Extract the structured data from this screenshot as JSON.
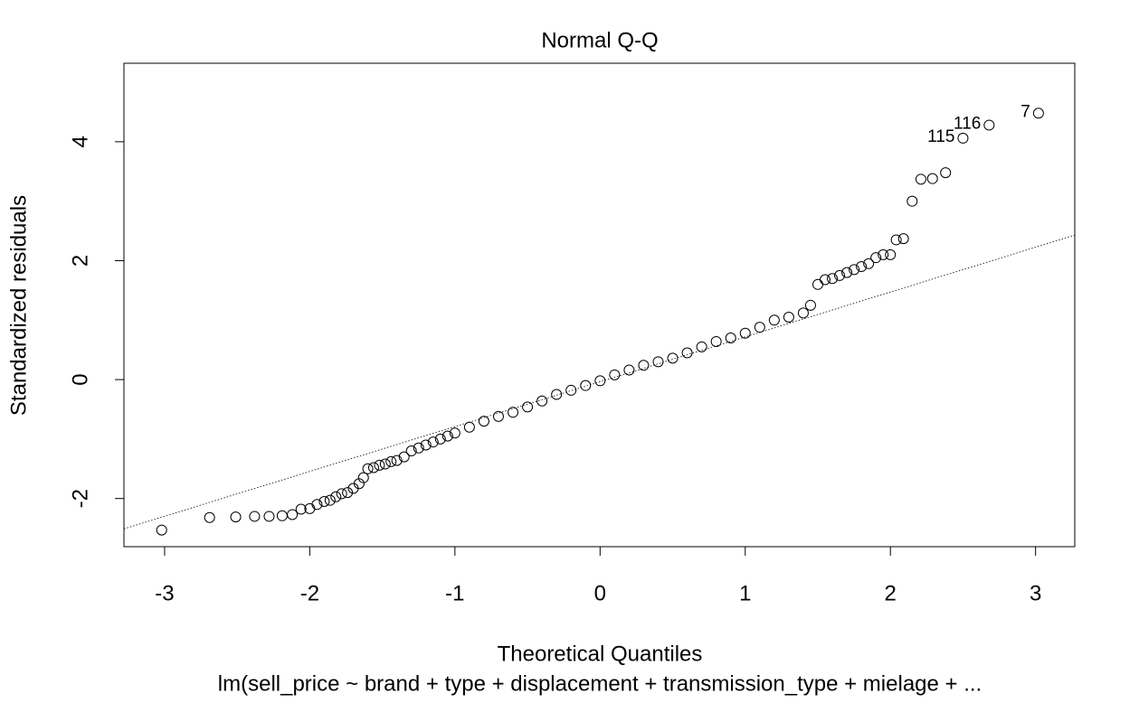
{
  "chart_data": {
    "type": "scatter",
    "title": "Normal Q-Q",
    "x_label": "Theoretical Quantiles",
    "y_label": "Standardized residuals",
    "subtitle": "lm(sell_price ~ brand + type + displacement + transmission_type + mielage + ...",
    "x": [
      -3.02,
      -2.69,
      -2.51,
      -2.38,
      -2.28,
      -2.19,
      -2.12,
      -2.06,
      -2.0,
      -1.95,
      -1.9,
      -1.86,
      -1.82,
      -1.78,
      -1.74,
      -1.7,
      -1.66,
      -1.63,
      -1.6,
      -1.56,
      -1.52,
      -1.48,
      -1.44,
      -1.4,
      -1.35,
      -1.3,
      -1.25,
      -1.2,
      -1.15,
      -1.1,
      -1.05,
      -1.0,
      -0.9,
      -0.8,
      -0.7,
      -0.6,
      -0.5,
      -0.4,
      -0.3,
      -0.2,
      -0.1,
      0,
      0.1,
      0.2,
      0.3,
      0.4,
      0.5,
      0.6,
      0.7,
      0.8,
      0.9,
      1.0,
      1.1,
      1.2,
      1.3,
      1.4,
      1.45,
      1.5,
      1.55,
      1.6,
      1.65,
      1.7,
      1.75,
      1.8,
      1.85,
      1.9,
      1.95,
      2.0,
      2.04,
      2.09,
      2.15,
      2.21,
      2.29,
      2.38,
      2.5,
      2.68,
      3.02
    ],
    "values": [
      -2.53,
      -2.32,
      -2.31,
      -2.3,
      -2.3,
      -2.29,
      -2.27,
      -2.18,
      -2.17,
      -2.1,
      -2.05,
      -2.03,
      -1.97,
      -1.92,
      -1.9,
      -1.83,
      -1.75,
      -1.65,
      -1.5,
      -1.48,
      -1.44,
      -1.42,
      -1.38,
      -1.36,
      -1.3,
      -1.2,
      -1.15,
      -1.1,
      -1.05,
      -1.0,
      -0.95,
      -0.9,
      -0.8,
      -0.7,
      -0.62,
      -0.55,
      -0.46,
      -0.36,
      -0.25,
      -0.18,
      -0.1,
      -0.02,
      0.08,
      0.16,
      0.24,
      0.3,
      0.36,
      0.45,
      0.55,
      0.64,
      0.7,
      0.78,
      0.88,
      1.0,
      1.05,
      1.12,
      1.25,
      1.6,
      1.68,
      1.7,
      1.75,
      1.8,
      1.85,
      1.9,
      1.95,
      2.05,
      2.1,
      2.1,
      2.35,
      2.37,
      3.0,
      3.37,
      3.38,
      3.48,
      4.06,
      4.28,
      4.48
    ],
    "reference_line": {
      "x": [
        -3.28,
        3.27
      ],
      "y": [
        -2.51,
        2.43
      ]
    },
    "annotations": [
      {
        "text": "115",
        "x": 2.5,
        "y": 4.06
      },
      {
        "text": "116",
        "x": 2.68,
        "y": 4.28
      },
      {
        "text": "7",
        "x": 3.02,
        "y": 4.48
      }
    ],
    "xlim": [
      -3.28,
      3.27
    ],
    "ylim": [
      -2.81,
      5.32
    ],
    "xticks": [
      -3,
      -2,
      -1,
      0,
      1,
      2,
      3
    ],
    "yticks": [
      -2,
      0,
      2,
      4
    ],
    "color": "#000000"
  }
}
